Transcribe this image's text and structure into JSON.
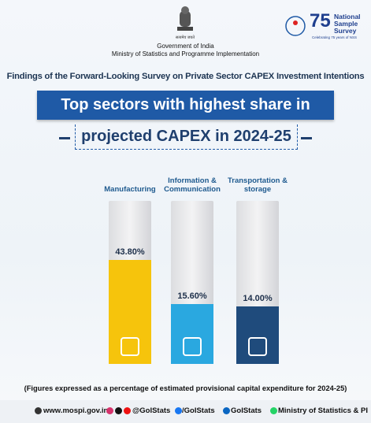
{
  "header": {
    "emblem_motto": "सत्यमेव जयते",
    "org_line1": "Government of India",
    "org_line2": "Ministry of Statistics and Programme Implementation",
    "nss_number": "75",
    "nss_name": "National Sample Survey",
    "nss_tagline": "Celebrating 75 years of NSS"
  },
  "chart_data": {
    "type": "bar",
    "subtitle": "Findings of the Forward-Looking Survey on Private Sector CAPEX Investment Intentions",
    "title": "Top sectors with highest share in",
    "title_line2": "projected CAPEX in 2024-25",
    "categories": [
      "Manufacturing",
      "Information & Communication",
      "Transportation & storage"
    ],
    "values": [
      43.8,
      15.6,
      14.0
    ],
    "value_labels": [
      "43.80%",
      "15.60%",
      "14.00%"
    ],
    "colors": [
      "#f6c40c",
      "#2aa8e0",
      "#1f4b7c"
    ],
    "footnote": "(Figures expressed as a percentage of estimated provisional capital expenditure for 2024-25)"
  },
  "footer": {
    "website": "www.mospi.gov.in",
    "handles": [
      "@GoIStats",
      "/GoIStats",
      "GoIStats",
      "Ministry of Statistics & PI"
    ]
  }
}
